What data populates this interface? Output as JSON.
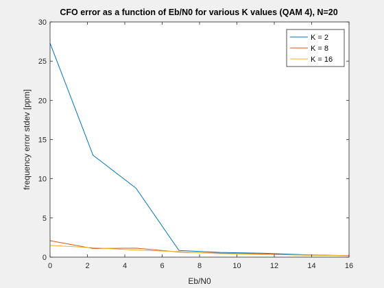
{
  "chart_data": {
    "type": "line",
    "title": "CFO error as a function of Eb/N0 for various K values (QAM 4), N=20",
    "xlabel": "Eb/N0",
    "ylabel": "frequency error stdev [ppm]",
    "xlim": [
      0,
      16
    ],
    "ylim": [
      0,
      30
    ],
    "xticks": [
      0,
      2,
      4,
      6,
      8,
      10,
      12,
      14,
      16
    ],
    "yticks": [
      0,
      5,
      10,
      15,
      20,
      25,
      30
    ],
    "grid": false,
    "legend_position": "top-right",
    "x": [
      0,
      2.3,
      4.6,
      6.9,
      9.1,
      11.4,
      13.7,
      16
    ],
    "series": [
      {
        "name": "K = 2",
        "color": "#0072bd",
        "values": [
          27.3,
          13.0,
          8.8,
          0.85,
          0.6,
          0.5,
          0.3,
          0.2
        ]
      },
      {
        "name": "K = 8",
        "color": "#d95319",
        "values": [
          2.1,
          1.1,
          1.15,
          0.65,
          0.5,
          0.4,
          0.25,
          0.2
        ]
      },
      {
        "name": "K = 16",
        "color": "#edb120",
        "values": [
          1.5,
          1.2,
          0.9,
          0.7,
          0.45,
          0.35,
          0.25,
          0.2
        ]
      }
    ]
  }
}
